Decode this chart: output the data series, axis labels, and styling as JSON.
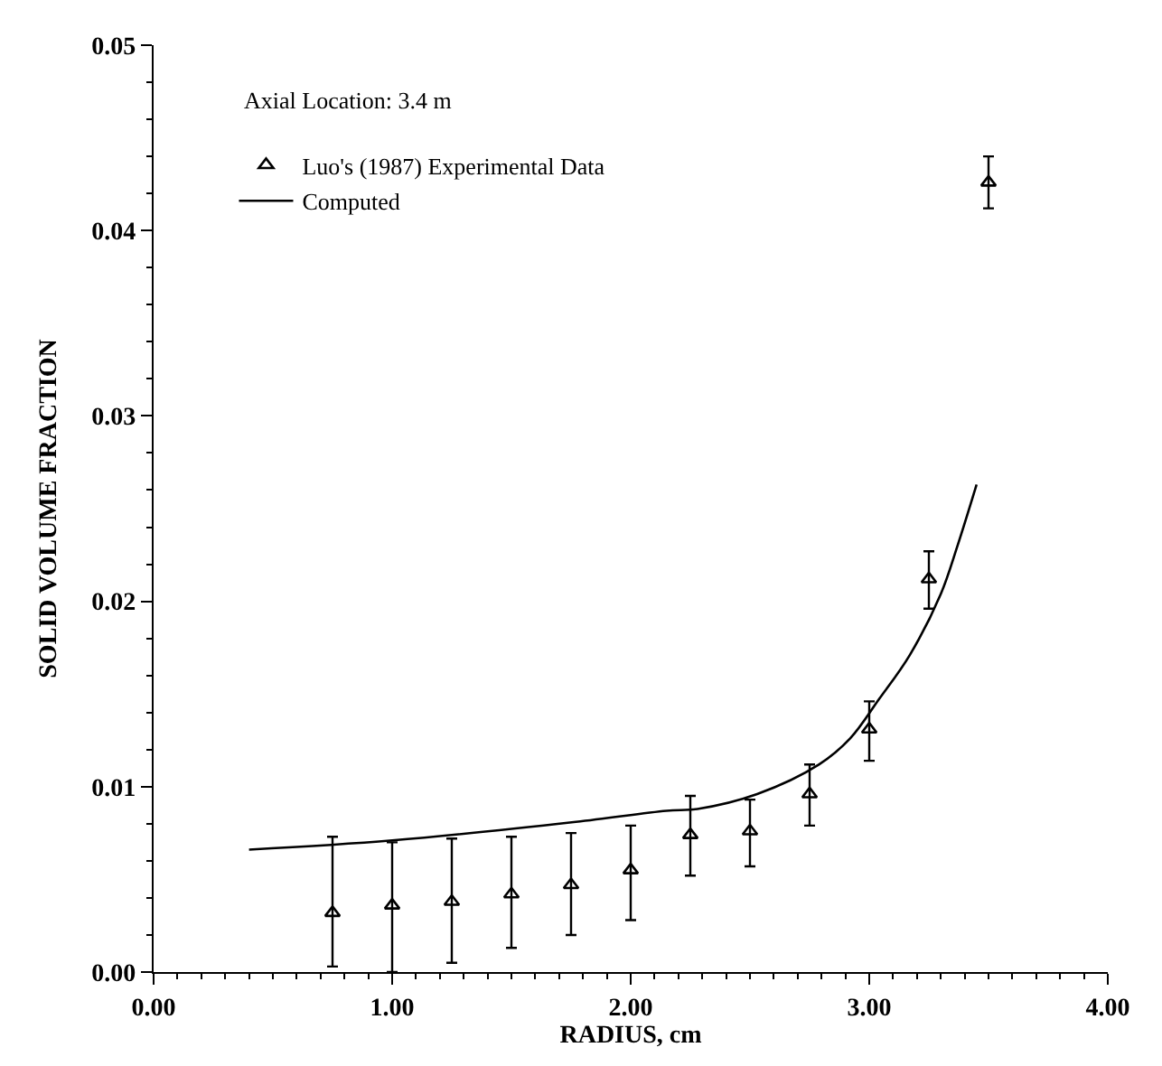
{
  "chart_data": {
    "type": "scatter",
    "xlabel": "RADIUS, cm",
    "ylabel": "SOLID VOLUME FRACTION",
    "annotations": [
      "Axial Location: 3.4 m"
    ],
    "xlim": [
      0,
      4
    ],
    "xticks": [
      {
        "value": 0,
        "label": "0.00"
      },
      {
        "value": 1,
        "label": "1.00"
      },
      {
        "value": 2,
        "label": "2.00"
      },
      {
        "value": 3,
        "label": "3.00"
      },
      {
        "value": 4,
        "label": "4.00"
      }
    ],
    "ylim": [
      0,
      0.05
    ],
    "yticks": [
      {
        "value": 0,
        "label": "0.00"
      },
      {
        "value": 0.01,
        "label": "0.01"
      },
      {
        "value": 0.02,
        "label": "0.02"
      },
      {
        "value": 0.03,
        "label": "0.03"
      },
      {
        "value": 0.04,
        "label": "0.04"
      },
      {
        "value": 0.05,
        "label": "0.05"
      }
    ],
    "legend": "top left",
    "series": [
      {
        "name": "Luo's (1987) Experimental Data",
        "marker": "triangle",
        "color": "#000000",
        "x": [
          0.75,
          1.0,
          1.25,
          1.5,
          1.75,
          2.0,
          2.25,
          2.5,
          2.75,
          3.0,
          3.25,
          3.5
        ],
        "values": [
          0.0032,
          0.0036,
          0.0038,
          0.0042,
          0.0047,
          0.0055,
          0.0074,
          0.0076,
          0.0096,
          0.0131,
          0.0212,
          0.0426
        ],
        "errors": [
          [
            0.0003,
            0.0073
          ],
          [
            0.0,
            0.007
          ],
          [
            0.0005,
            0.0072
          ],
          [
            0.0013,
            0.0073
          ],
          [
            0.002,
            0.0075
          ],
          [
            0.0028,
            0.0079
          ],
          [
            0.0052,
            0.0095
          ],
          [
            0.0057,
            0.0093
          ],
          [
            0.0079,
            0.0112
          ],
          [
            0.0114,
            0.0146
          ],
          [
            0.0196,
            0.0227
          ],
          [
            0.0412,
            0.044
          ]
        ]
      },
      {
        "name": "Computed",
        "type": "line",
        "marker": "none",
        "color": "#000000",
        "x": [
          0.4,
          1.0,
          1.77,
          2.15,
          2.28,
          2.53,
          2.79,
          2.92,
          3.04,
          3.17,
          3.3,
          3.37,
          3.45
        ],
        "values": [
          0.0066,
          0.0071,
          0.0081,
          0.0087,
          0.0088,
          0.0096,
          0.0112,
          0.0126,
          0.0147,
          0.0171,
          0.0204,
          0.023,
          0.0263
        ]
      }
    ]
  }
}
